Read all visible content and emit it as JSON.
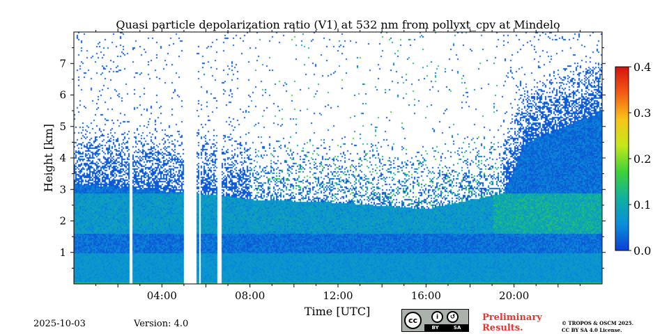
{
  "chart_data": {
    "type": "heatmap",
    "title": "Quasi particle depolarization ratio (V1) at 532 nm from pollyxt_cpv at Mindelo",
    "xlabel": "Time [UTC]",
    "ylabel": "Height [km]",
    "xlim": [
      0,
      24
    ],
    "ylim": [
      0,
      8
    ],
    "x_ticks": [
      {
        "value": 4,
        "label": "04:00"
      },
      {
        "value": 8,
        "label": "08:00"
      },
      {
        "value": 12,
        "label": "12:00"
      },
      {
        "value": 16,
        "label": "16:00"
      },
      {
        "value": 20,
        "label": "20:00"
      }
    ],
    "y_ticks": [
      {
        "value": 1,
        "label": "1"
      },
      {
        "value": 2,
        "label": "2"
      },
      {
        "value": 3,
        "label": "3"
      },
      {
        "value": 4,
        "label": "4"
      },
      {
        "value": 5,
        "label": "5"
      },
      {
        "value": 6,
        "label": "6"
      },
      {
        "value": 7,
        "label": "7"
      }
    ],
    "colorbar": {
      "range": [
        0.0,
        0.4
      ],
      "ticks": [
        {
          "value": 0.0,
          "label": "0.0"
        },
        {
          "value": 0.1,
          "label": "0.1"
        },
        {
          "value": 0.2,
          "label": "0.2"
        },
        {
          "value": 0.3,
          "label": "0.3"
        },
        {
          "value": 0.4,
          "label": "0.4"
        }
      ],
      "colormap": [
        "#0d3fd6",
        "#0a8fd8",
        "#11b0a0",
        "#3ed138",
        "#c4e81a",
        "#f7c419",
        "#f45c13",
        "#d4130f"
      ]
    },
    "gaps_hours": [
      [
        2.5,
        2.65
      ],
      [
        4.95,
        5.55
      ],
      [
        5.65,
        5.75
      ],
      [
        6.5,
        6.65
      ]
    ],
    "profile": {
      "surface_value": 0.12,
      "aerosol_top_km": [
        {
          "t": 0,
          "h": 3.2
        },
        {
          "t": 7,
          "h": 2.8
        },
        {
          "t": 8,
          "h": 2.7
        },
        {
          "t": 12,
          "h": 2.6
        },
        {
          "t": 16,
          "h": 2.4
        },
        {
          "t": 19.5,
          "h": 2.9
        },
        {
          "t": 20.5,
          "h": 4.5
        },
        {
          "t": 24,
          "h": 5.5
        }
      ],
      "dust_layer_value": 0.09
    }
  },
  "footer": {
    "date": "2025-10-03",
    "version": "Version: 4.0",
    "license_badge": {
      "cc": "cc",
      "by": "BY",
      "sa": "SA"
    },
    "preliminary_line1": "Preliminary",
    "preliminary_line2": "Results.",
    "copyright_line1": "© TROPOS & OSCM 2025.",
    "copyright_line2": "CC BY SA 4.0 License."
  }
}
